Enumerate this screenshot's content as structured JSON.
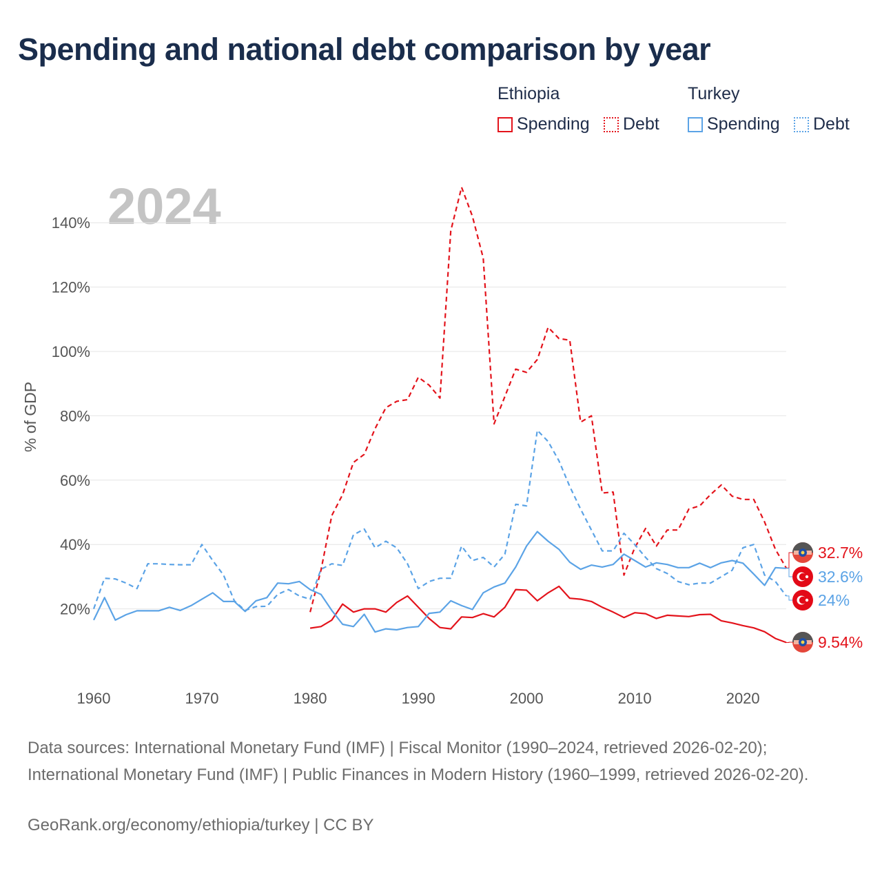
{
  "title": "Spending and national debt comparison by year",
  "legend": {
    "groups": [
      {
        "country": "Ethiopia",
        "color": "#e3131b",
        "items": [
          {
            "label": "Spending",
            "style": "solid"
          },
          {
            "label": "Debt",
            "style": "dotted"
          }
        ]
      },
      {
        "country": "Turkey",
        "color": "#5ba3e6",
        "items": [
          {
            "label": "Spending",
            "style": "solid"
          },
          {
            "label": "Debt",
            "style": "dotted"
          }
        ]
      }
    ]
  },
  "year_watermark": "2024",
  "chart_data": {
    "type": "line",
    "xlabel": "",
    "ylabel": "% of GDP",
    "xlim": [
      1960,
      2024
    ],
    "ylim": [
      0,
      150
    ],
    "x_ticks": [
      1960,
      1970,
      1980,
      1990,
      2000,
      2010,
      2020
    ],
    "y_ticks": [
      20,
      40,
      60,
      80,
      100,
      120,
      140
    ],
    "y_tick_labels": [
      "20%",
      "40%",
      "60%",
      "80%",
      "100%",
      "120%",
      "140%"
    ],
    "grid": true,
    "series": [
      {
        "name": "Ethiopia Spending",
        "color": "#e3131b",
        "dash": "solid",
        "x": [
          1980,
          1981,
          1982,
          1983,
          1984,
          1985,
          1986,
          1987,
          1988,
          1989,
          1990,
          1991,
          1992,
          1993,
          1994,
          1995,
          1996,
          1997,
          1998,
          1999,
          2000,
          2001,
          2002,
          2003,
          2004,
          2005,
          2006,
          2007,
          2008,
          2009,
          2010,
          2011,
          2012,
          2013,
          2014,
          2015,
          2016,
          2017,
          2018,
          2019,
          2020,
          2021,
          2022,
          2023,
          2024
        ],
        "values": [
          14,
          14.5,
          16.5,
          21.5,
          19,
          20,
          20,
          19,
          22,
          24,
          20.5,
          17,
          14.2,
          13.8,
          17.5,
          17.3,
          18.5,
          17.5,
          20.5,
          26,
          25.8,
          22.5,
          25,
          27,
          23.3,
          23,
          22.3,
          20.5,
          19,
          17.3,
          18.8,
          18.5,
          17,
          18,
          17.8,
          17.6,
          18.2,
          18.3,
          16.3,
          15.6,
          14.8,
          14.1,
          12.9,
          10.8,
          9.54
        ]
      },
      {
        "name": "Ethiopia Debt",
        "color": "#e3131b",
        "dash": "dashed",
        "x": [
          1980,
          1981,
          1982,
          1983,
          1984,
          1985,
          1986,
          1987,
          1988,
          1989,
          1990,
          1991,
          1992,
          1993,
          1994,
          1995,
          1996,
          1997,
          1998,
          1999,
          2000,
          2001,
          2002,
          2003,
          2004,
          2005,
          2006,
          2007,
          2008,
          2009,
          2010,
          2011,
          2012,
          2013,
          2014,
          2015,
          2016,
          2017,
          2018,
          2019,
          2020,
          2021,
          2022,
          2023,
          2024
        ],
        "values": [
          19,
          32,
          49,
          55.5,
          65.5,
          68,
          76,
          82.5,
          84.5,
          85,
          92,
          89.5,
          85.5,
          137.5,
          151,
          142,
          129,
          77.5,
          86,
          94.5,
          93.5,
          97.5,
          107.5,
          104,
          103.5,
          78,
          80,
          56,
          56.3,
          30.5,
          39,
          45,
          39.5,
          44.5,
          44.5,
          51,
          52,
          55.5,
          58.5,
          55,
          54,
          54,
          47,
          38.5,
          32.7
        ]
      },
      {
        "name": "Turkey Spending",
        "color": "#5ba3e6",
        "dash": "solid",
        "x": [
          1960,
          1961,
          1962,
          1963,
          1964,
          1965,
          1966,
          1967,
          1968,
          1969,
          1970,
          1971,
          1972,
          1973,
          1974,
          1975,
          1976,
          1977,
          1978,
          1979,
          1980,
          1981,
          1982,
          1983,
          1984,
          1985,
          1986,
          1987,
          1988,
          1989,
          1990,
          1991,
          1992,
          1993,
          1994,
          1995,
          1996,
          1997,
          1998,
          1999,
          2000,
          2001,
          2002,
          2003,
          2004,
          2005,
          2006,
          2007,
          2008,
          2009,
          2010,
          2011,
          2012,
          2013,
          2014,
          2015,
          2016,
          2017,
          2018,
          2019,
          2020,
          2021,
          2022,
          2023,
          2024
        ],
        "values": [
          16.5,
          23.5,
          16.5,
          18.2,
          19.4,
          19.4,
          19.4,
          20.5,
          19.5,
          21,
          23,
          25,
          22.3,
          22.3,
          19.2,
          22.5,
          23.5,
          28,
          27.8,
          28.5,
          26,
          24.5,
          19.5,
          15.2,
          14.5,
          18.3,
          12.8,
          13.8,
          13.5,
          14.2,
          14.5,
          18.6,
          19,
          22.5,
          21,
          19.8,
          25,
          26.8,
          28,
          33,
          39.5,
          44,
          41,
          38.5,
          34.5,
          32.3,
          33.6,
          33,
          33.8,
          37,
          35,
          33,
          34.3,
          33.8,
          32.8,
          32.8,
          34.2,
          32.8,
          34.3,
          35,
          34.2,
          30.8,
          27.3,
          32.8,
          32.6
        ]
      },
      {
        "name": "Turkey Debt",
        "color": "#5ba3e6",
        "dash": "dashed",
        "x": [
          1960,
          1961,
          1962,
          1963,
          1964,
          1965,
          1966,
          1967,
          1968,
          1969,
          1970,
          1971,
          1972,
          1973,
          1974,
          1975,
          1976,
          1977,
          1978,
          1979,
          1980,
          1981,
          1982,
          1983,
          1984,
          1985,
          1986,
          1987,
          1988,
          1989,
          1990,
          1991,
          1992,
          1993,
          1994,
          1995,
          1996,
          1997,
          1998,
          1999,
          2000,
          2001,
          2002,
          2003,
          2004,
          2005,
          2006,
          2007,
          2008,
          2009,
          2010,
          2011,
          2012,
          2013,
          2014,
          2015,
          2016,
          2017,
          2018,
          2019,
          2020,
          2021,
          2022,
          2023,
          2024
        ],
        "values": [
          20,
          29.5,
          29.3,
          28,
          26.3,
          34,
          34,
          33.8,
          33.7,
          33.7,
          40,
          35,
          30.5,
          22.5,
          19.5,
          20.7,
          20.8,
          24.5,
          26,
          24,
          23,
          32.3,
          34,
          33.5,
          43,
          44.8,
          39,
          41,
          39,
          34,
          26.3,
          28.5,
          29.5,
          29.5,
          39.5,
          35,
          36,
          33,
          37,
          52.5,
          52,
          75.5,
          72,
          66,
          58,
          51,
          44.5,
          38,
          38,
          43.5,
          40,
          36,
          32.5,
          31,
          28.5,
          27.5,
          28,
          28,
          30,
          32,
          39,
          40,
          30.5,
          28.5,
          24
        ]
      }
    ],
    "end_labels": [
      {
        "text": "32.7%",
        "color": "#e3131b",
        "flag": "ethiopia",
        "value": 32.7
      },
      {
        "text": "32.6%",
        "color": "#5ba3e6",
        "flag": "turkey",
        "value": 32.6
      },
      {
        "text": "24%",
        "color": "#5ba3e6",
        "flag": "turkey",
        "value": 24
      },
      {
        "text": "9.54%",
        "color": "#e3131b",
        "flag": "ethiopia",
        "value": 9.54
      }
    ]
  },
  "sources": "Data sources: International Monetary Fund (IMF) | Fiscal Monitor (1990–2024, retrieved 2026-02-20); International Monetary Fund (IMF) | Public Finances in Modern History (1960–1999, retrieved 2026-02-20).",
  "credit": "GeoRank.org/economy/ethiopia/turkey | CC BY"
}
